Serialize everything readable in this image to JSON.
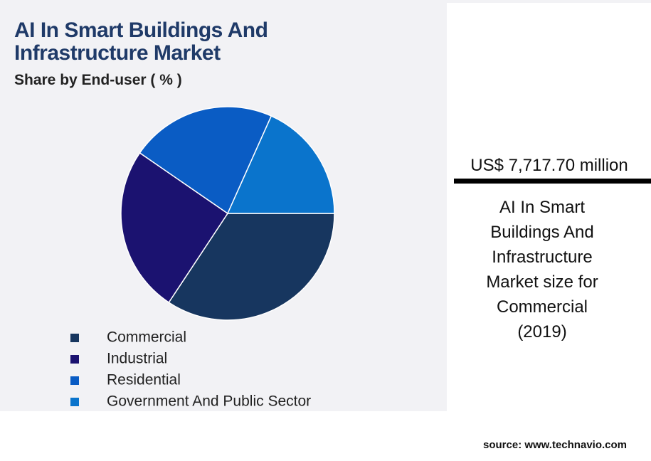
{
  "chart_data": {
    "type": "pie",
    "title": "AI In Smart Buildings And Infrastructure Market",
    "subtitle": "Share by End-user ( % )",
    "categories": [
      "Commercial",
      "Industrial",
      "Residential",
      "Government And Public Sector"
    ],
    "values": [
      34.3,
      25.3,
      22.1,
      18.3
    ],
    "colors": [
      "#17365f",
      "#1b1270",
      "#0a5cc4",
      "#0a74cc"
    ]
  },
  "panel": {
    "highlight": "US$ 7,717.70 million",
    "description": [
      "AI In Smart",
      "Buildings And",
      "Infrastructure",
      "Market size for",
      "Commercial",
      "(2019)"
    ],
    "source": "source: www.technavio.com"
  }
}
